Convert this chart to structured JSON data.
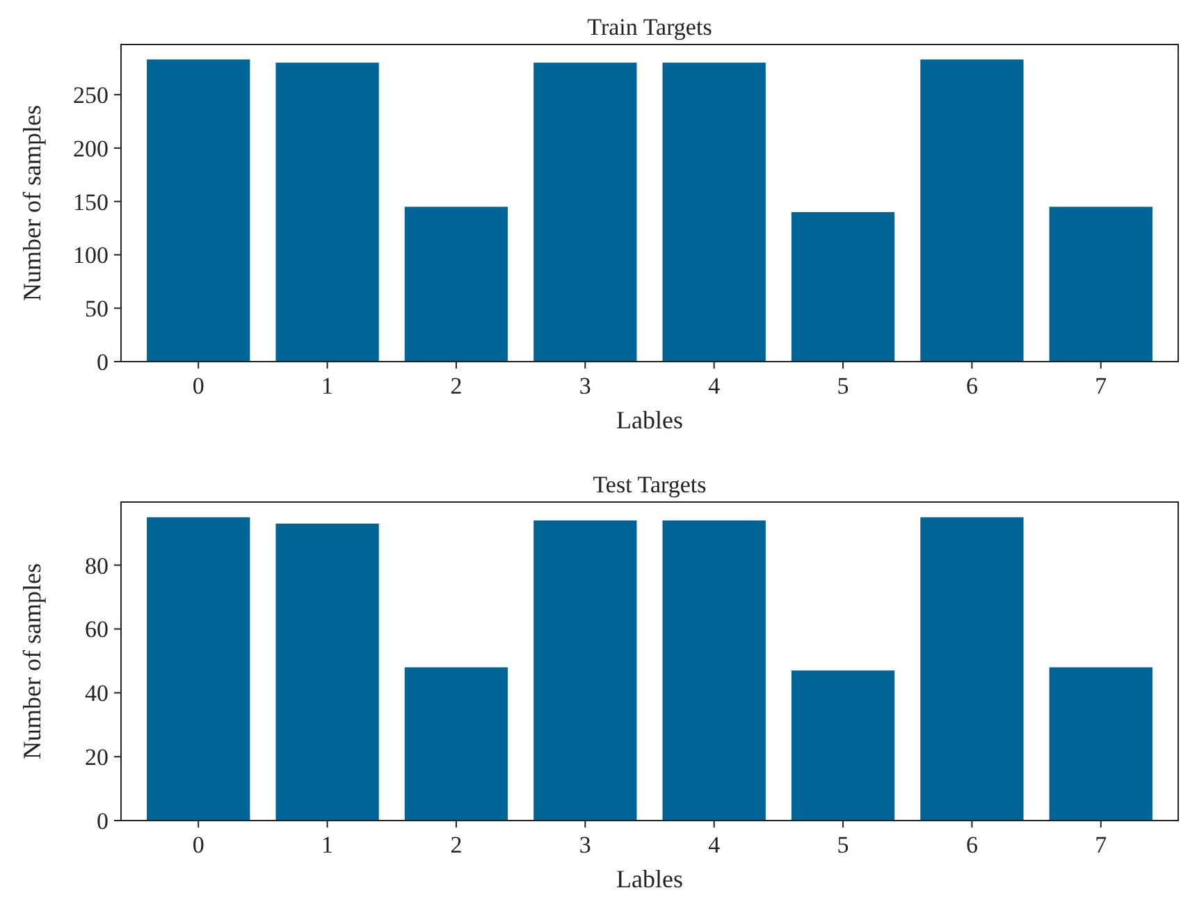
{
  "chart_data": [
    {
      "type": "bar",
      "title": "Train Targets",
      "xlabel": "Lables",
      "ylabel": "Number of samples",
      "categories": [
        "0",
        "1",
        "2",
        "3",
        "4",
        "5",
        "6",
        "7"
      ],
      "values": [
        283,
        280,
        145,
        280,
        280,
        140,
        283,
        145
      ],
      "color": "#006496",
      "ylim": [
        0,
        297
      ],
      "yticks": [
        0,
        50,
        100,
        150,
        200,
        250
      ],
      "grid": false
    },
    {
      "type": "bar",
      "title": "Test Targets",
      "xlabel": "Lables",
      "ylabel": "Number of samples",
      "categories": [
        "0",
        "1",
        "2",
        "3",
        "4",
        "5",
        "6",
        "7"
      ],
      "values": [
        95,
        93,
        48,
        94,
        94,
        47,
        95,
        48
      ],
      "color": "#006496",
      "ylim": [
        0,
        99.75
      ],
      "yticks": [
        0,
        20,
        40,
        60,
        80
      ],
      "grid": false
    }
  ]
}
